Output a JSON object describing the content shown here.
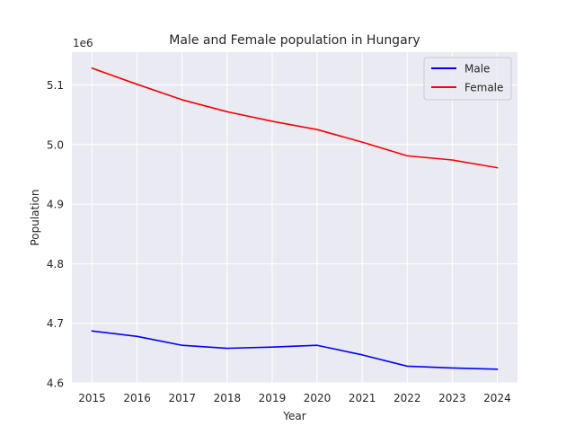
{
  "chart_data": {
    "type": "line",
    "title": "Male and Female population in Hungary",
    "xlabel": "Year",
    "ylabel": "Population",
    "offset_text": "1e6",
    "x": [
      2015,
      2016,
      2017,
      2018,
      2019,
      2020,
      2021,
      2022,
      2023,
      2024
    ],
    "x_tick_labels": [
      "2015",
      "2016",
      "2017",
      "2018",
      "2019",
      "2020",
      "2021",
      "2022",
      "2023",
      "2024"
    ],
    "y_ticks": [
      4.6,
      4.7,
      4.8,
      4.9,
      5.0,
      5.1
    ],
    "y_tick_labels": [
      "4.6",
      "4.7",
      "4.8",
      "4.9",
      "5.0",
      "5.1"
    ],
    "xlim": [
      2014.55,
      2024.45
    ],
    "ylim": [
      4.6,
      5.155
    ],
    "y_scale_factor": 1000000,
    "grid": true,
    "legend_position": "top-right",
    "series": [
      {
        "name": "Male",
        "color": "#0000ff",
        "values": [
          4.687,
          4.678,
          4.663,
          4.658,
          4.66,
          4.663,
          4.647,
          4.628,
          4.625,
          4.623
        ]
      },
      {
        "name": "Female",
        "color": "#ff0000",
        "values": [
          5.128,
          5.101,
          5.075,
          5.055,
          5.039,
          5.025,
          5.004,
          4.981,
          4.974,
          4.961
        ]
      }
    ]
  }
}
